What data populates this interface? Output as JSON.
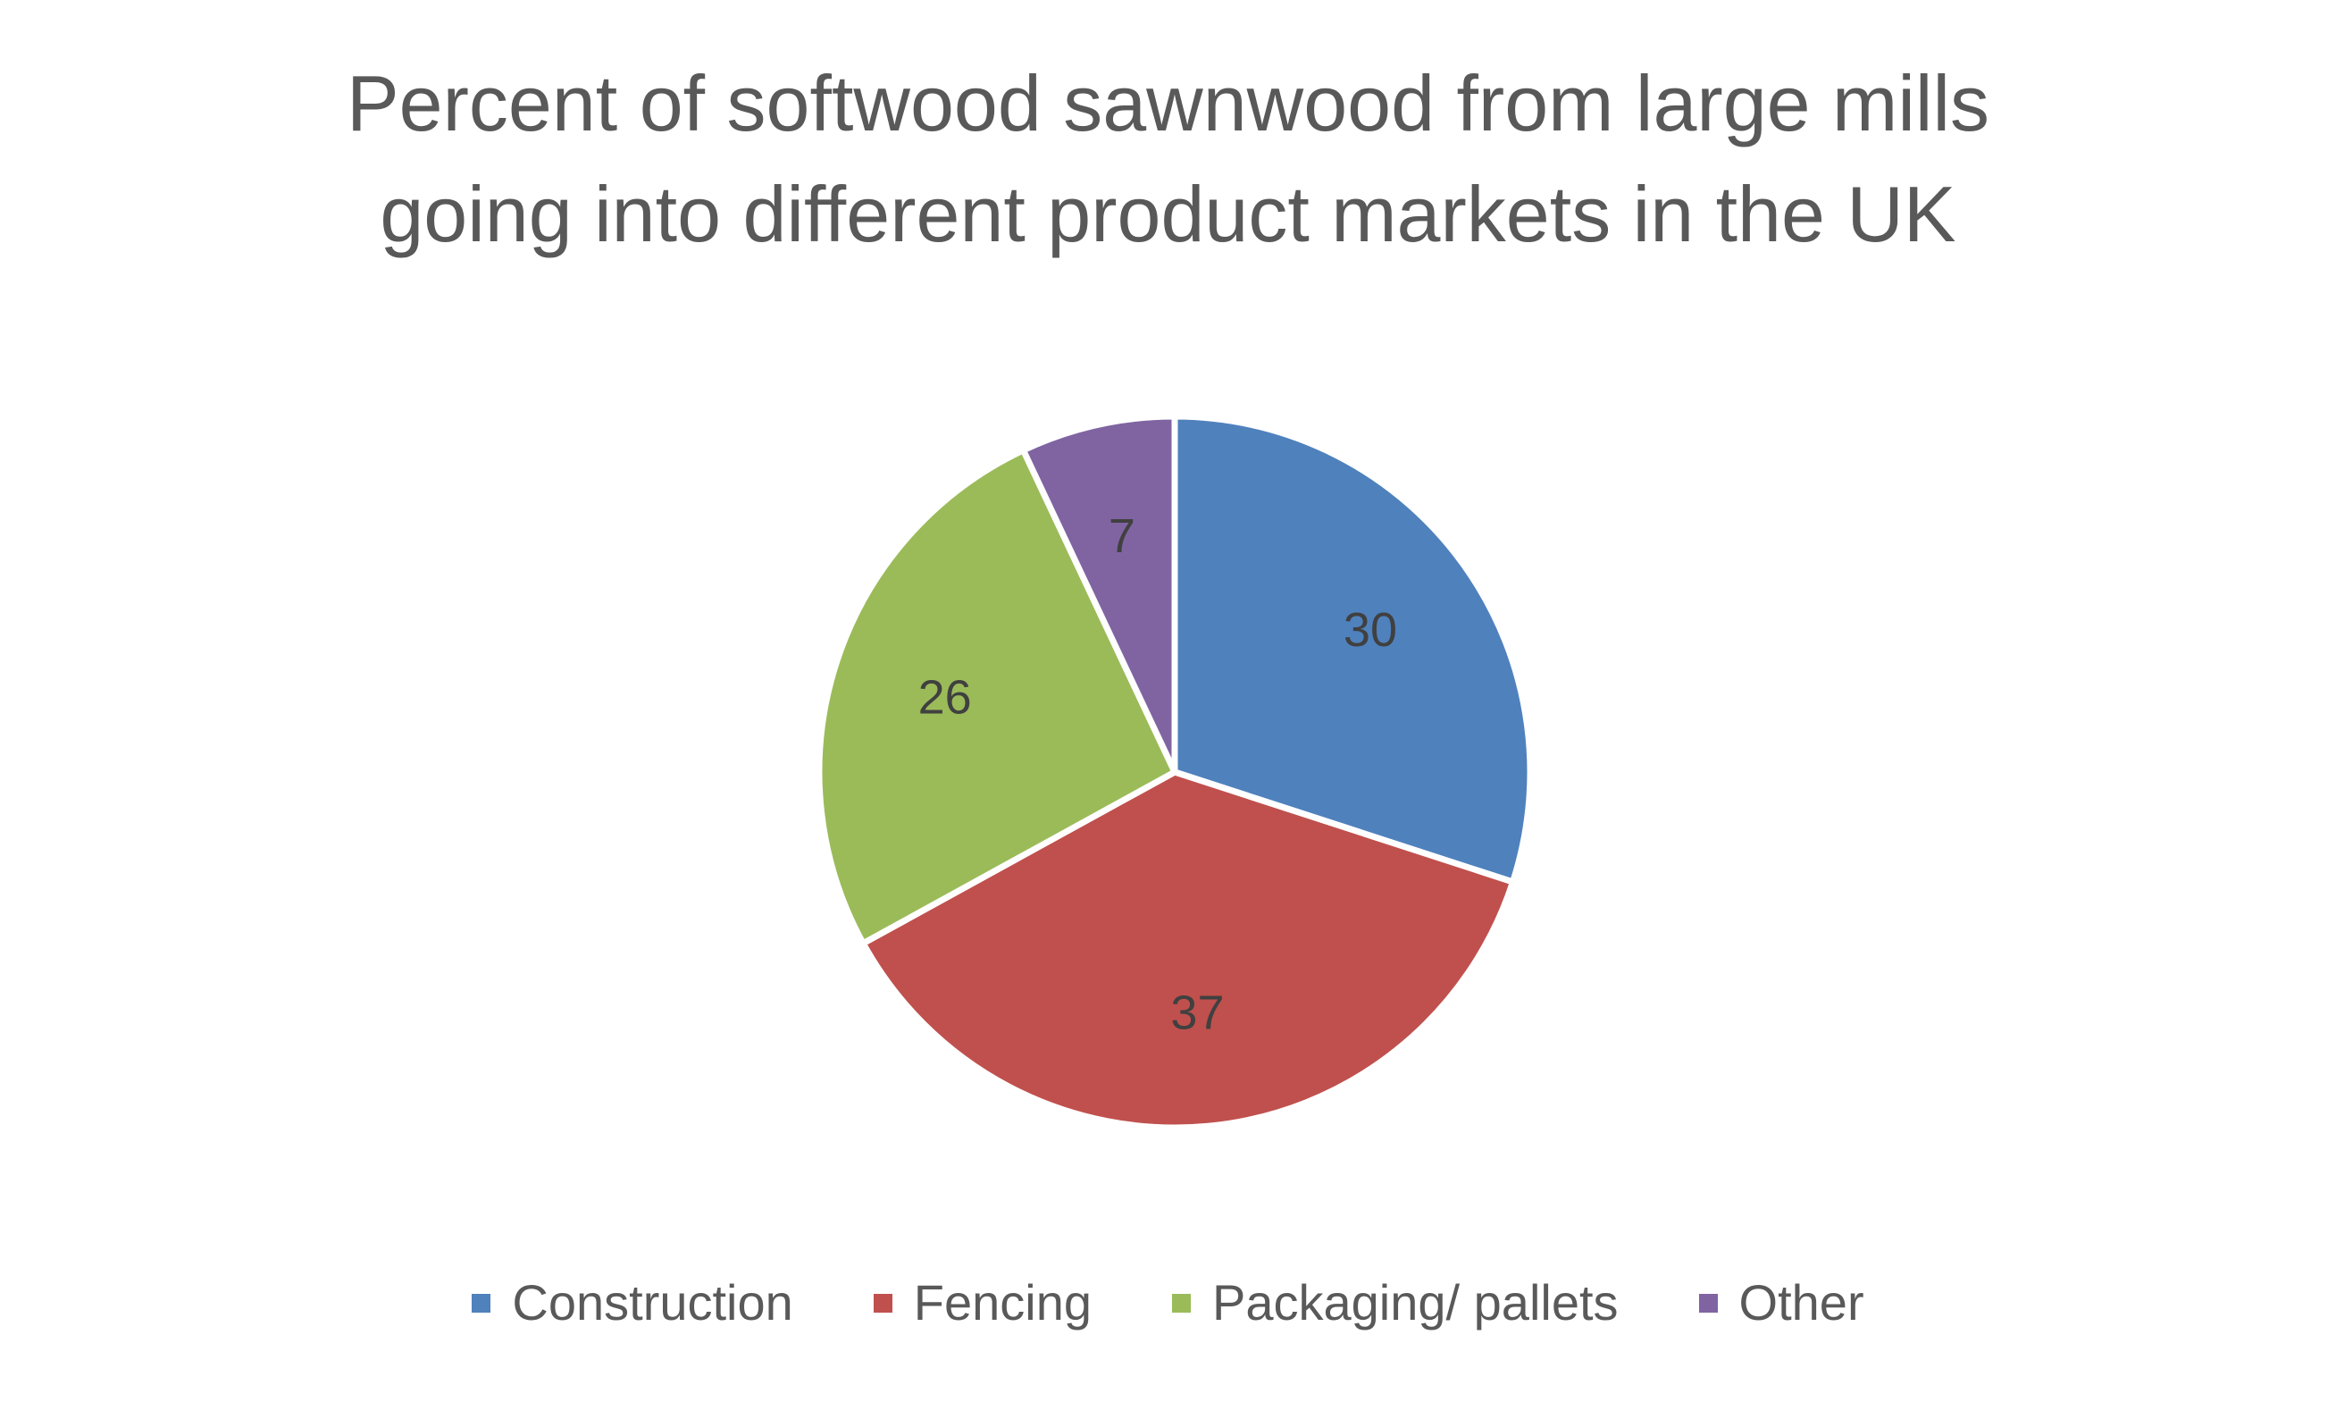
{
  "chart_data": {
    "type": "pie",
    "title_lines": [
      "Percent of softwood sawnwood from large mills",
      "going into different product markets in the UK"
    ],
    "categories": [
      "Construction",
      "Fencing",
      "Packaging/ pallets",
      "Other"
    ],
    "values": [
      30,
      37,
      26,
      7
    ],
    "data_labels": [
      "30",
      "37",
      "26",
      "7"
    ],
    "colors": [
      "#4F81BD",
      "#C0504D",
      "#9BBB59",
      "#8064A2"
    ],
    "legend_position": "bottom",
    "start_angle": "12 o'clock",
    "direction": "clockwise"
  }
}
